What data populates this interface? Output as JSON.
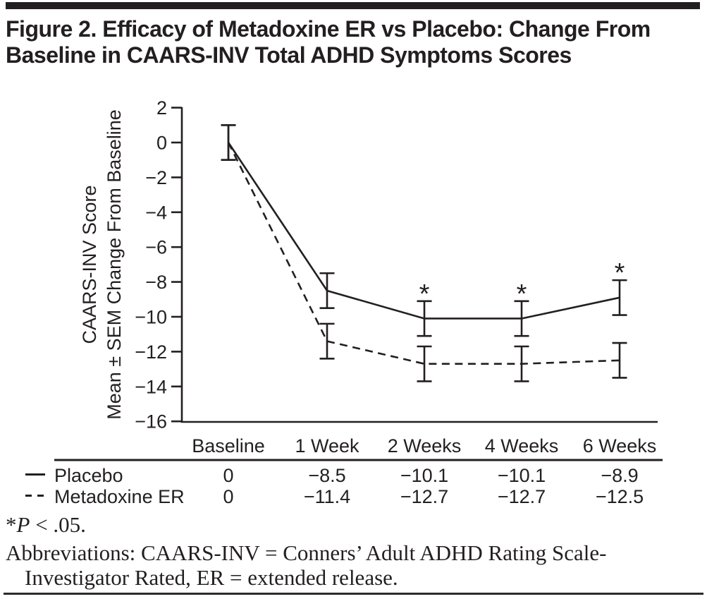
{
  "header": {
    "title_lines": [
      "Figure 2. Efficacy of Metadoxine ER vs Placebo: Change From",
      "Baseline in CAARS-INV Total ADHD Symptoms Scores"
    ]
  },
  "chart_data": {
    "type": "line",
    "title": "",
    "xlabel": "",
    "ylabel_lines": [
      "CAARS-INV Score",
      "Mean ± SEM Change From Baseline"
    ],
    "categories": [
      "Baseline",
      "1 Week",
      "2 Weeks",
      "4 Weeks",
      "6 Weeks"
    ],
    "series": [
      {
        "name": "Placebo",
        "line_style": "solid",
        "values": [
          0,
          -8.5,
          -10.1,
          -10.1,
          -8.9
        ],
        "sem": [
          1.0,
          1.0,
          1.0,
          1.0,
          1.0
        ],
        "significant_points": [
          2,
          3,
          4
        ]
      },
      {
        "name": "Metadoxine ER",
        "line_style": "dashed",
        "values": [
          0,
          -11.4,
          -12.7,
          -12.7,
          -12.5
        ],
        "sem": [
          1.0,
          1.0,
          1.0,
          1.0,
          1.0
        ],
        "significant_points": []
      }
    ],
    "ylim": [
      -16,
      2
    ],
    "yticks": [
      2,
      0,
      -2,
      -4,
      -6,
      -8,
      -10,
      -12,
      -14,
      -16
    ],
    "grid": false,
    "legend_position": "table-left",
    "significance_marker": "*",
    "error_bars": "SEM",
    "line_color": "#231f20"
  },
  "table": {
    "rows": [
      {
        "legend": "solid",
        "cells": [
          "0",
          "−8.5",
          "−10.1",
          "−10.1",
          "−8.9"
        ]
      },
      {
        "legend": "dashed",
        "cells": [
          "0",
          "−11.4",
          "−12.7",
          "−12.7",
          "−12.5"
        ]
      }
    ]
  },
  "footnotes": {
    "sig_star": "*",
    "sig_p": "P",
    "sig_rest": " < .05.",
    "abbrev_lines": [
      "Abbreviations: CAARS-INV = Conners’ Adult ADHD Rating Scale-",
      "Investigator Rated, ER = extended release."
    ]
  }
}
